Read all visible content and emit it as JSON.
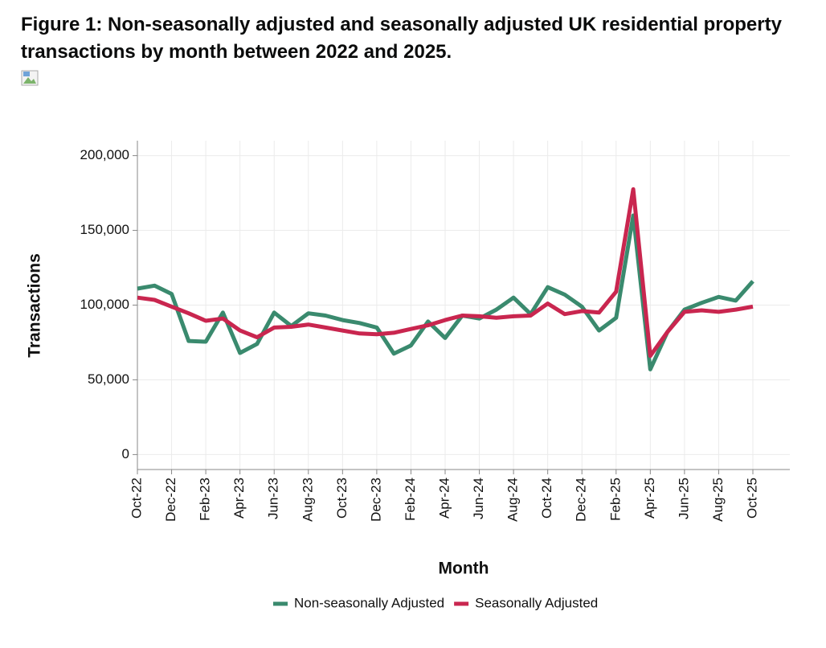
{
  "chart_data": {
    "type": "line",
    "title": "Figure 1: Non-seasonally adjusted and seasonally adjusted UK residential property transactions by month between 2022 and 2025.",
    "x_label": "Month",
    "y_label": "Transactions",
    "categories": [
      "Oct-22",
      null,
      "Dec-22",
      null,
      "Feb-23",
      null,
      "Apr-23",
      null,
      "Jun-23",
      null,
      "Aug-23",
      null,
      "Oct-23",
      null,
      "Dec-23",
      null,
      "Feb-24",
      null,
      "Apr-24",
      null,
      "Jun-24",
      null,
      "Aug-24",
      null,
      "Oct-24",
      null,
      "Dec-24",
      null,
      "Feb-25",
      null,
      "Apr-25",
      null,
      "Jun-25",
      null,
      "Aug-25",
      null,
      "Oct-25"
    ],
    "series": [
      {
        "name": "Non-seasonally Adjusted",
        "color": "#3a8a6e",
        "values": [
          111000,
          113000,
          107500,
          76000,
          75500,
          95000,
          68000,
          74000,
          95000,
          86000,
          94500,
          93000,
          90000,
          88000,
          85000,
          67500,
          73000,
          89000,
          78000,
          93000,
          91000,
          97000,
          105000,
          94000,
          112000,
          107000,
          99000,
          83000,
          91500,
          160000,
          57000,
          82000,
          97000,
          101500,
          105500,
          103000,
          116000
        ]
      },
      {
        "name": "Seasonally Adjusted",
        "color": "#c9264f",
        "values": [
          105000,
          103500,
          99000,
          94500,
          89500,
          91000,
          83000,
          78500,
          85000,
          85500,
          87000,
          85000,
          83000,
          81000,
          80500,
          81500,
          84000,
          86500,
          90000,
          93000,
          92500,
          91500,
          92500,
          93000,
          101000,
          94000,
          96000,
          95000,
          109000,
          177500,
          66000,
          82000,
          95500,
          96500,
          95500,
          97000,
          99000
        ]
      }
    ],
    "ylim": [
      -10000,
      210000
    ],
    "yticks": [
      0,
      {
        "value": 50000,
        "label": "50,000"
      },
      {
        "value": 100000,
        "label": "100,000"
      },
      {
        "value": 150000,
        "label": "150,000"
      },
      {
        "value": 200000,
        "label": "200,000"
      }
    ],
    "grid": true,
    "legend": "bottom"
  }
}
